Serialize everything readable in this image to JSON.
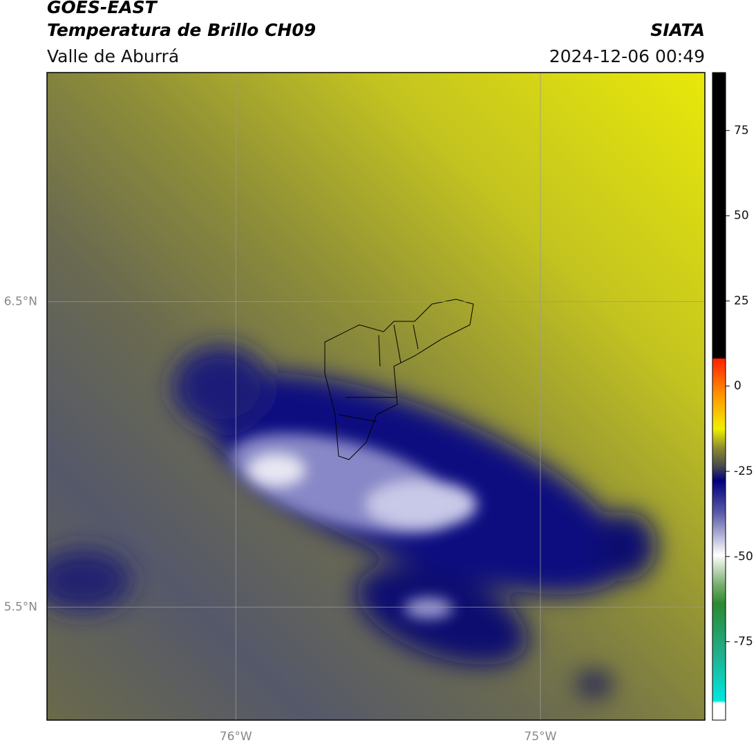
{
  "header": {
    "title": "GOES-EAST",
    "subtitle": "Temperatura de Brillo CH09",
    "source": "SIATA",
    "region": "Valle de Aburrá",
    "datetime": "2024-12-06 00:49"
  },
  "map": {
    "xlim": [
      -76.62,
      -74.46
    ],
    "ylim": [
      5.13,
      7.25
    ],
    "xticks": [
      {
        "value": -76,
        "label": "76°W"
      },
      {
        "value": -75,
        "label": "75°W"
      }
    ],
    "yticks": [
      {
        "value": 6.5,
        "label": "6.5°N"
      },
      {
        "value": 5.5,
        "label": "5.5°N"
      }
    ]
  },
  "colorbar": {
    "limits": [
      -98,
      92
    ],
    "ticks": [
      75,
      50,
      25,
      0,
      -25,
      -50,
      -75
    ]
  }
}
